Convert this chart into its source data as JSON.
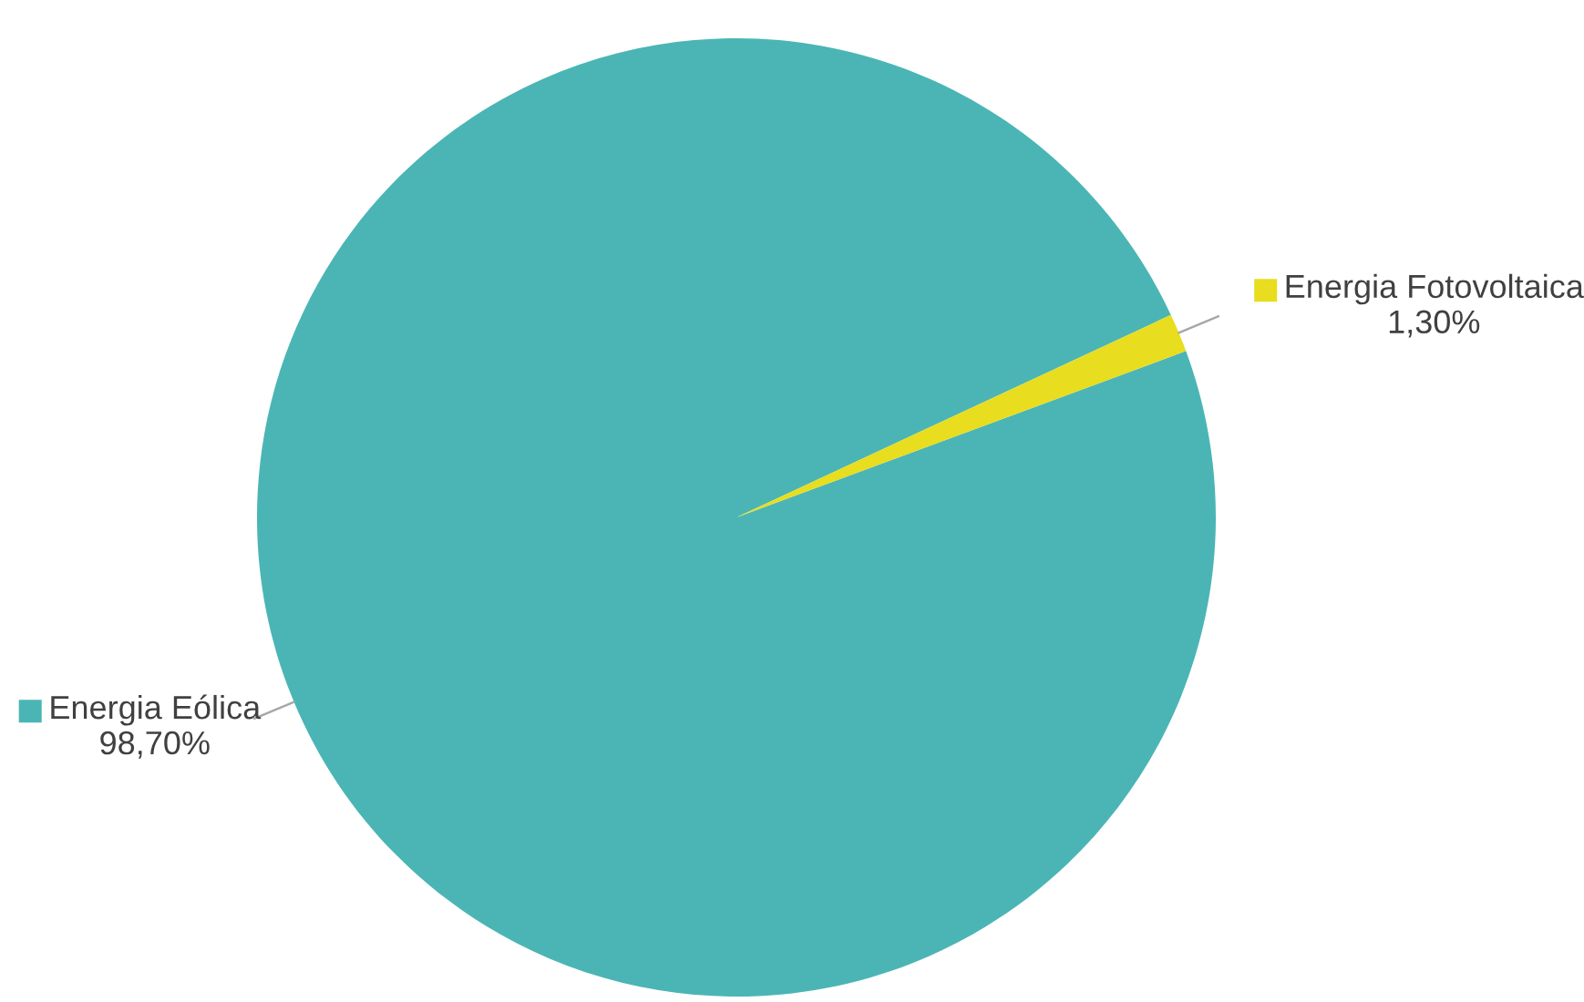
{
  "chart_data": {
    "type": "pie",
    "categories": [
      "Energia Eólica",
      "Energia Fotovoltaica"
    ],
    "values": [
      98.7,
      1.3
    ],
    "colors": [
      "#4bb5b5",
      "#e8dd1e"
    ],
    "value_labels": [
      "98,70%",
      "1,30%"
    ],
    "legend": "right"
  }
}
